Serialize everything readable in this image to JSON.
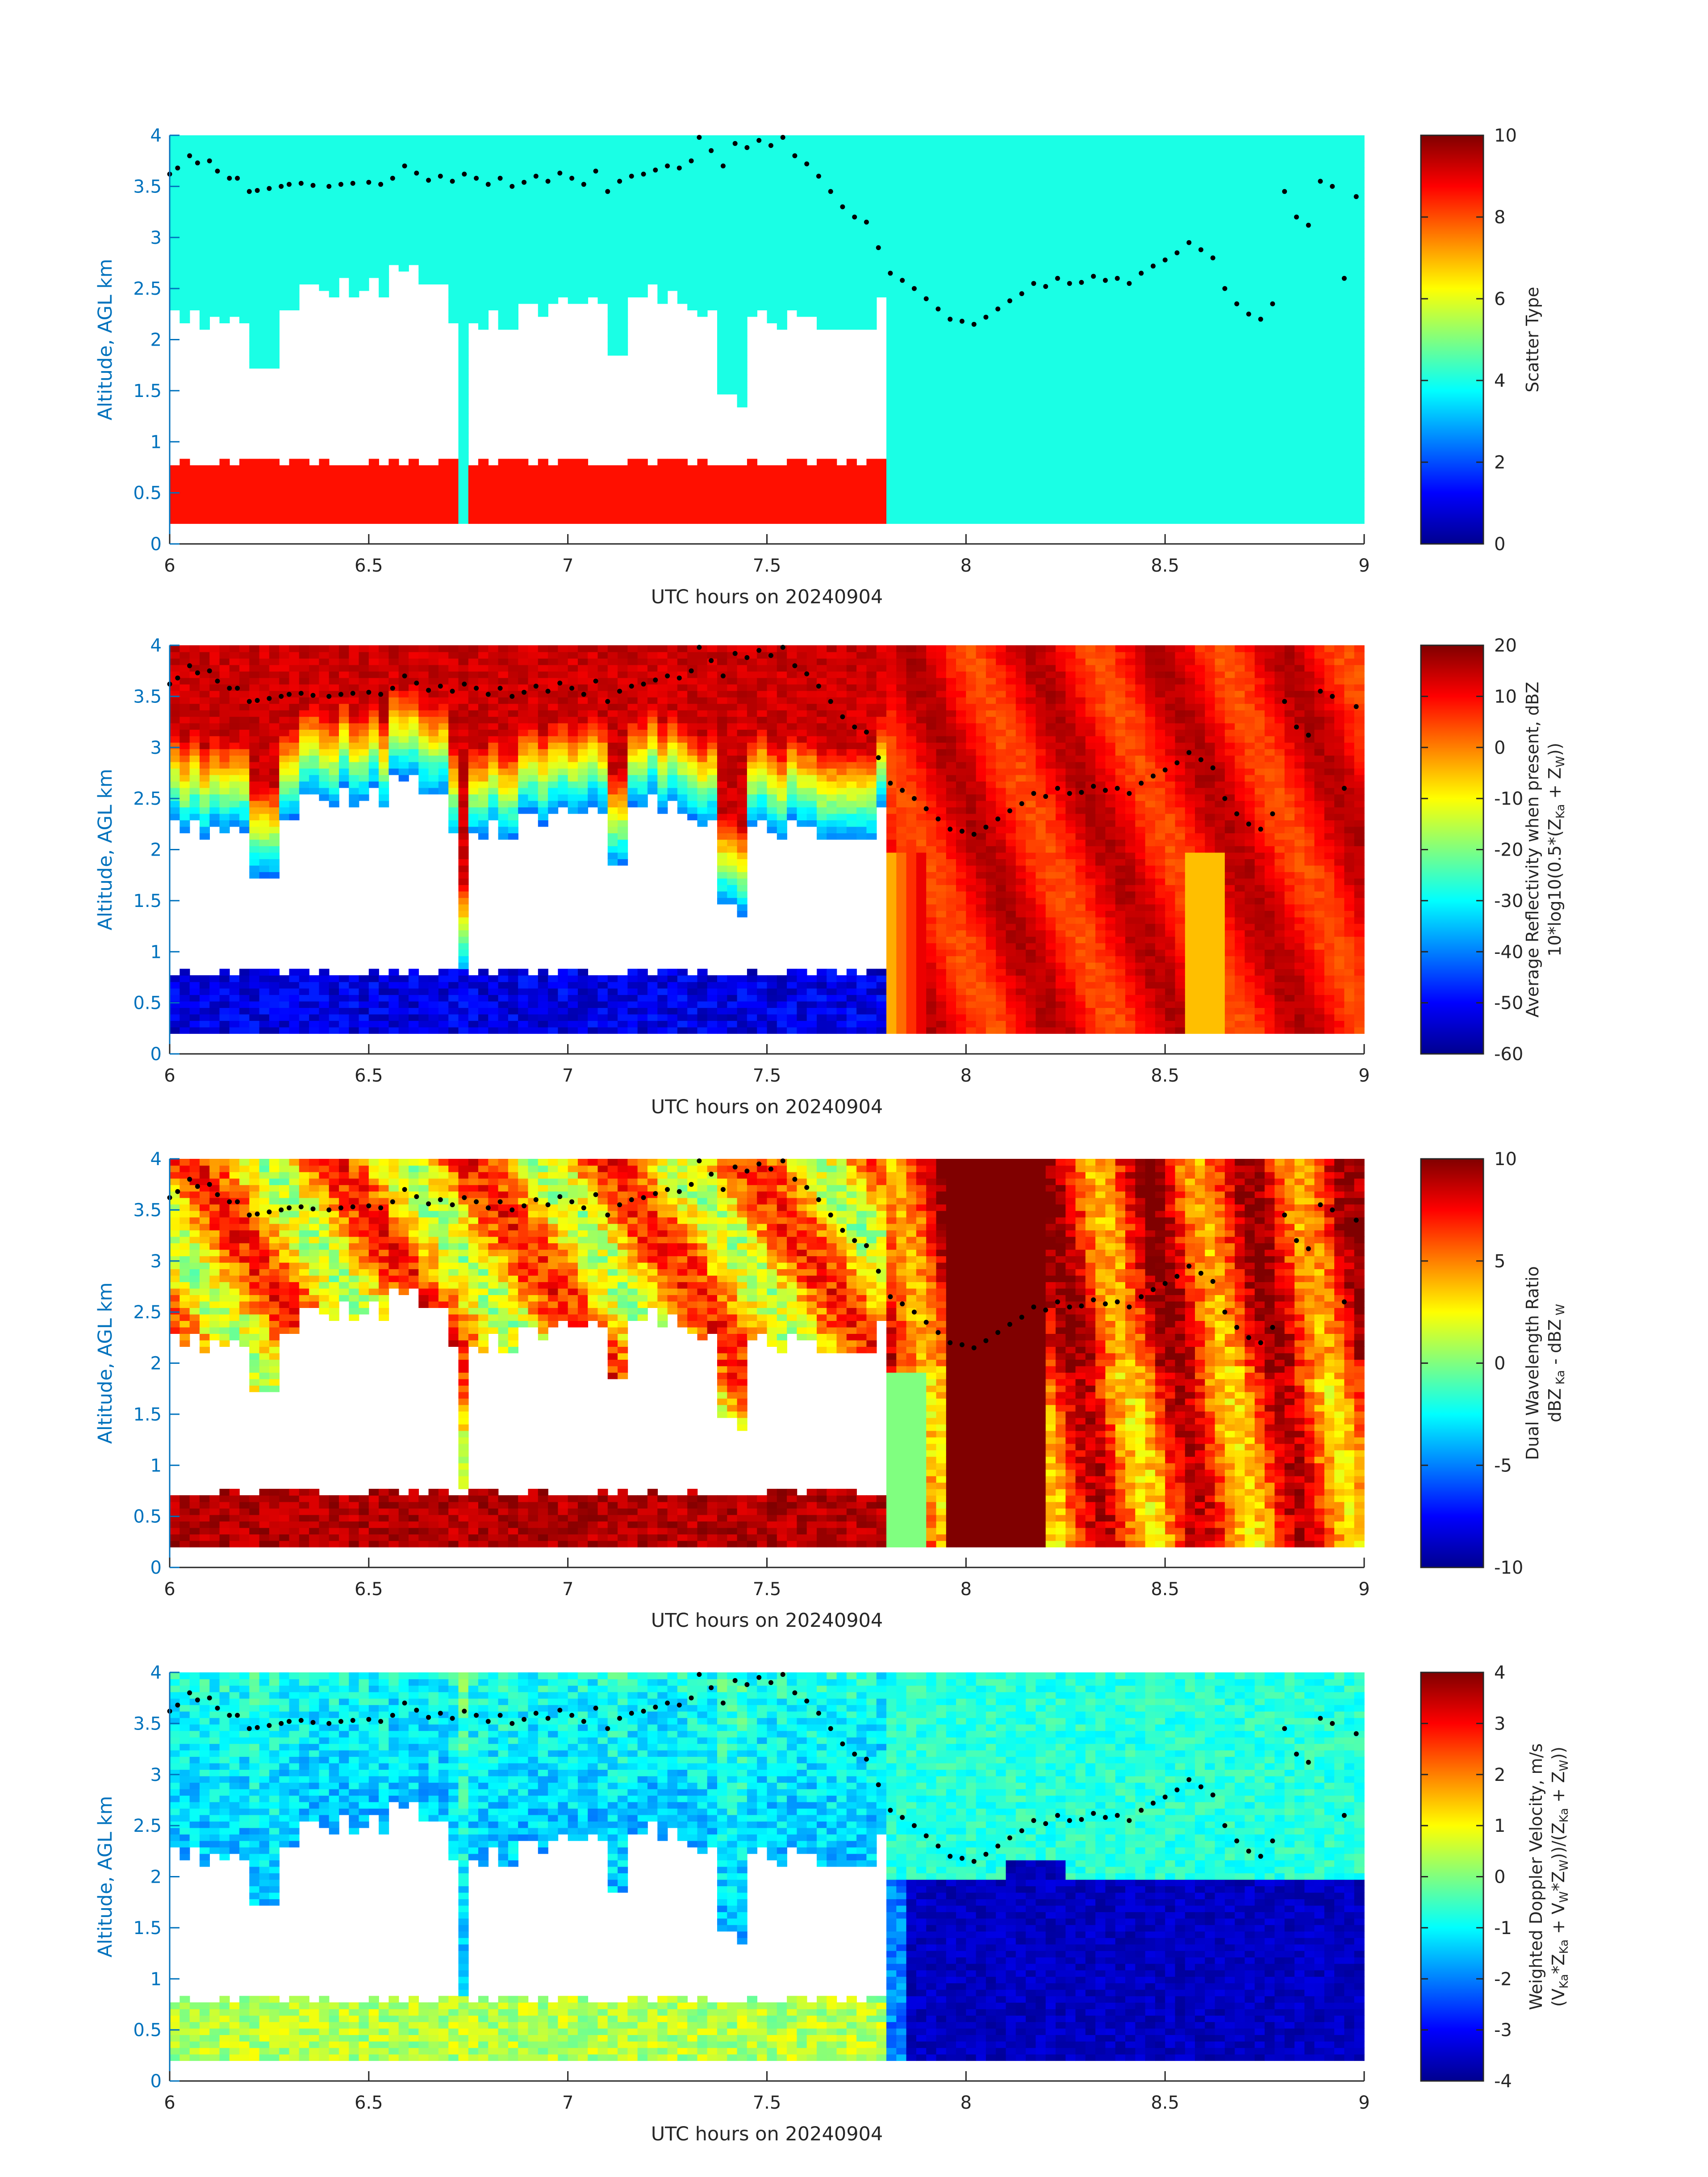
{
  "colors": {
    "axis": "#262626",
    "yaxis": "#0072BD",
    "white": "#ffffff"
  },
  "chart_data": [
    {
      "type": "heatmap",
      "variable": "scatter_type",
      "xlabel": "UTC hours on 20240904",
      "ylabel": "Altitude, AGL km",
      "xlim": [
        6,
        9
      ],
      "ylim": [
        0,
        4
      ],
      "xticks": [
        "6",
        "6.5",
        "7",
        "7.5",
        "8",
        "8.5",
        "9"
      ],
      "yticks": [
        "0",
        "0.5",
        "1",
        "1.5",
        "2",
        "2.5",
        "3",
        "3.5",
        "4"
      ],
      "colorbar": {
        "label_lines": [
          "Scatter Type"
        ],
        "range": [
          0,
          10
        ],
        "ticks": [
          "0",
          "2",
          "4",
          "6",
          "8",
          "10"
        ],
        "colormap": "jet"
      },
      "data_range_km": [
        0.2,
        4.0
      ],
      "description_regions": [
        {
          "from_hour": 6.0,
          "to_hour": 7.78,
          "below_km": 0.8,
          "value": 8.6
        },
        {
          "from_hour": 6.0,
          "to_hour": 7.78,
          "between_km": [
            0.8,
            2.3
          ],
          "value": "none"
        },
        {
          "from_hour": 6.0,
          "to_hour": 9.0,
          "above_cloud_top": true,
          "value": 4.0
        },
        {
          "from_hour": 7.78,
          "to_hour": 9.0,
          "all_heights": true,
          "value": 4.0
        }
      ]
    },
    {
      "type": "heatmap",
      "variable": "average_reflectivity",
      "xlabel": "UTC hours on 20240904",
      "ylabel": "Altitude, AGL km",
      "xlim": [
        6,
        9
      ],
      "ylim": [
        0,
        4
      ],
      "xticks": [
        "6",
        "6.5",
        "7",
        "7.5",
        "8",
        "8.5",
        "9"
      ],
      "yticks": [
        "0",
        "0.5",
        "1",
        "1.5",
        "2",
        "2.5",
        "3",
        "3.5",
        "4"
      ],
      "colorbar": {
        "label_lines": [
          "Average Reflectivity when present, dBZ",
          "10*log10(0.5*(Z",
          "Ka",
          " + Z",
          "W",
          "))"
        ],
        "range": [
          -60,
          20
        ],
        "ticks": [
          "-60",
          "-50",
          "-40",
          "-30",
          "-20",
          "-10",
          "0",
          "10",
          "20"
        ],
        "colormap": "jet"
      },
      "typical_values": {
        "lower_layer_6_to_7.8h": -52,
        "upper_cloud_6_to_7.8h": 8,
        "after_7.9h": 12
      }
    },
    {
      "type": "heatmap",
      "variable": "dual_wavelength_ratio",
      "xlabel": "UTC hours on 20240904",
      "ylabel": "Altitude, AGL km",
      "xlim": [
        6,
        9
      ],
      "ylim": [
        0,
        4
      ],
      "xticks": [
        "6",
        "6.5",
        "7",
        "7.5",
        "8",
        "8.5",
        "9"
      ],
      "yticks": [
        "0",
        "0.5",
        "1",
        "1.5",
        "2",
        "2.5",
        "3",
        "3.5",
        "4"
      ],
      "colorbar": {
        "label_lines": [
          "Dual Wavelength Ratio",
          "dBZ",
          " Ka",
          " - dBZ",
          " W"
        ],
        "range": [
          -10,
          10
        ],
        "ticks": [
          "-10",
          "-5",
          "0",
          "5",
          "10"
        ],
        "colormap": "jet"
      },
      "typical_values": {
        "lower_layer_6_to_7.8h": 10,
        "upper_cloud_6_to_7.8h": 5,
        "column_7.95_to_8.2h": 10,
        "after_8.2h": 6
      }
    },
    {
      "type": "heatmap",
      "variable": "weighted_doppler_velocity",
      "xlabel": "UTC hours on 20240904",
      "ylabel": "Altitude, AGL km",
      "xlim": [
        6,
        9
      ],
      "ylim": [
        0,
        4
      ],
      "xticks": [
        "6",
        "6.5",
        "7",
        "7.5",
        "8",
        "8.5",
        "9"
      ],
      "yticks": [
        "0",
        "0.5",
        "1",
        "1.5",
        "2",
        "2.5",
        "3",
        "3.5",
        "4"
      ],
      "colorbar": {
        "label_lines": [
          "Weighted Doppler Velocity, m/s",
          "(V",
          "Ka",
          "*Z",
          "Ka",
          " + V",
          "W",
          "*Z",
          "W",
          "))/(Z",
          "Ka",
          " + Z",
          "W",
          "))"
        ],
        "range": [
          -4,
          4
        ],
        "ticks": [
          "-4",
          "-3",
          "-2",
          "-1",
          "0",
          "1",
          "2",
          "3",
          "4"
        ],
        "colormap": "jet"
      },
      "typical_values": {
        "lower_layer_6_to_7.8h": 0.5,
        "upper_cloud": -1,
        "below_2km_after_7.9h": -3.8
      }
    }
  ],
  "overlay_points": {
    "description": "black dots, cloud-top / lidar height estimate",
    "hours": [
      6.0,
      6.02,
      6.05,
      6.07,
      6.1,
      6.12,
      6.15,
      6.17,
      6.2,
      6.22,
      6.25,
      6.28,
      6.3,
      6.33,
      6.36,
      6.4,
      6.43,
      6.46,
      6.5,
      6.53,
      6.56,
      6.59,
      6.62,
      6.65,
      6.68,
      6.71,
      6.74,
      6.77,
      6.8,
      6.83,
      6.86,
      6.89,
      6.92,
      6.95,
      6.98,
      7.01,
      7.04,
      7.07,
      7.1,
      7.13,
      7.16,
      7.19,
      7.22,
      7.25,
      7.28,
      7.31,
      7.33,
      7.36,
      7.39,
      7.42,
      7.45,
      7.48,
      7.51,
      7.54,
      7.57,
      7.6,
      7.63,
      7.66,
      7.69,
      7.72,
      7.75,
      7.78,
      7.81,
      7.84,
      7.87,
      7.9,
      7.93,
      7.96,
      7.99,
      8.02,
      8.05,
      8.08,
      8.11,
      8.14,
      8.17,
      8.2,
      8.23,
      8.26,
      8.29,
      8.32,
      8.35,
      8.38,
      8.41,
      8.44,
      8.47,
      8.5,
      8.53,
      8.56,
      8.59,
      8.62,
      8.65,
      8.68,
      8.71,
      8.74,
      8.77,
      8.8,
      8.83,
      8.86,
      8.89,
      8.92,
      8.95,
      8.98
    ],
    "alt_km": [
      3.62,
      3.68,
      3.8,
      3.73,
      3.75,
      3.65,
      3.58,
      3.58,
      3.45,
      3.46,
      3.48,
      3.5,
      3.52,
      3.53,
      3.51,
      3.5,
      3.52,
      3.53,
      3.54,
      3.52,
      3.58,
      3.7,
      3.63,
      3.56,
      3.6,
      3.55,
      3.62,
      3.58,
      3.52,
      3.58,
      3.5,
      3.54,
      3.6,
      3.55,
      3.63,
      3.58,
      3.52,
      3.65,
      3.45,
      3.55,
      3.6,
      3.62,
      3.66,
      3.7,
      3.68,
      3.75,
      3.98,
      3.85,
      3.7,
      3.92,
      3.88,
      3.95,
      3.9,
      3.98,
      3.8,
      3.72,
      3.6,
      3.45,
      3.3,
      3.2,
      3.15,
      2.9,
      2.65,
      2.58,
      2.5,
      2.4,
      2.3,
      2.2,
      2.18,
      2.15,
      2.22,
      2.3,
      2.38,
      2.45,
      2.55,
      2.52,
      2.6,
      2.55,
      2.56,
      2.62,
      2.58,
      2.6,
      2.55,
      2.65,
      2.72,
      2.78,
      2.85,
      2.95,
      2.88,
      2.8,
      2.5,
      2.35,
      2.25,
      2.2,
      2.35,
      3.45,
      3.2,
      3.12,
      3.55,
      3.5,
      2.6,
      3.4
    ]
  }
}
